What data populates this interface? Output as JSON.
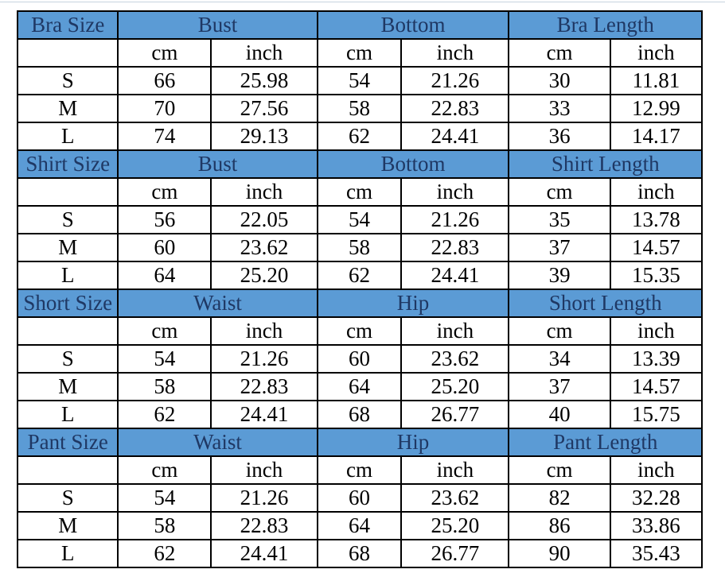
{
  "theme": {
    "header_background": "#5b9bd5",
    "header_text_color": "#1f3864",
    "body_text_color": "#000000",
    "border_color": "#000000",
    "page_background": "#ffffff"
  },
  "sections": [
    {
      "size_label": "Bra Size",
      "groups": [
        "Bust",
        "Bottom",
        "Bra Length"
      ],
      "units": [
        "cm",
        "inch",
        "cm",
        "inch",
        "cm",
        "inch"
      ],
      "rows": [
        {
          "size": "S",
          "values": [
            "66",
            "25.98",
            "54",
            "21.26",
            "30",
            "11.81"
          ]
        },
        {
          "size": "M",
          "values": [
            "70",
            "27.56",
            "58",
            "22.83",
            "33",
            "12.99"
          ]
        },
        {
          "size": "L",
          "values": [
            "74",
            "29.13",
            "62",
            "24.41",
            "36",
            "14.17"
          ]
        }
      ]
    },
    {
      "size_label": "Shirt Size",
      "groups": [
        "Bust",
        "Bottom",
        "Shirt Length"
      ],
      "units": [
        "cm",
        "inch",
        "cm",
        "inch",
        "cm",
        "inch"
      ],
      "rows": [
        {
          "size": "S",
          "values": [
            "56",
            "22.05",
            "54",
            "21.26",
            "35",
            "13.78"
          ]
        },
        {
          "size": "M",
          "values": [
            "60",
            "23.62",
            "58",
            "22.83",
            "37",
            "14.57"
          ]
        },
        {
          "size": "L",
          "values": [
            "64",
            "25.20",
            "62",
            "24.41",
            "39",
            "15.35"
          ]
        }
      ]
    },
    {
      "size_label": "Short Size",
      "groups": [
        "Waist",
        "Hip",
        "Short Length"
      ],
      "units": [
        "cm",
        "inch",
        "cm",
        "inch",
        "cm",
        "inch"
      ],
      "rows": [
        {
          "size": "S",
          "values": [
            "54",
            "21.26",
            "60",
            "23.62",
            "34",
            "13.39"
          ]
        },
        {
          "size": "M",
          "values": [
            "58",
            "22.83",
            "64",
            "25.20",
            "37",
            "14.57"
          ]
        },
        {
          "size": "L",
          "values": [
            "62",
            "24.41",
            "68",
            "26.77",
            "40",
            "15.75"
          ]
        }
      ]
    },
    {
      "size_label": "Pant Size",
      "groups": [
        "Waist",
        "Hip",
        "Pant Length"
      ],
      "units": [
        "cm",
        "inch",
        "cm",
        "inch",
        "cm",
        "inch"
      ],
      "rows": [
        {
          "size": "S",
          "values": [
            "54",
            "21.26",
            "60",
            "23.62",
            "82",
            "32.28"
          ]
        },
        {
          "size": "M",
          "values": [
            "58",
            "22.83",
            "64",
            "25.20",
            "86",
            "33.86"
          ]
        },
        {
          "size": "L",
          "values": [
            "62",
            "24.41",
            "68",
            "26.77",
            "90",
            "35.43"
          ]
        }
      ]
    }
  ],
  "chart_data": [
    {
      "type": "table",
      "title": "Bra Size",
      "columns": [
        "Bra Size",
        "Bust cm",
        "Bust inch",
        "Bottom cm",
        "Bottom inch",
        "Bra Length cm",
        "Bra Length inch"
      ],
      "rows": [
        [
          "S",
          66,
          25.98,
          54,
          21.26,
          30,
          11.81
        ],
        [
          "M",
          70,
          27.56,
          58,
          22.83,
          33,
          12.99
        ],
        [
          "L",
          74,
          29.13,
          62,
          24.41,
          36,
          14.17
        ]
      ]
    },
    {
      "type": "table",
      "title": "Shirt Size",
      "columns": [
        "Shirt Size",
        "Bust cm",
        "Bust inch",
        "Bottom cm",
        "Bottom inch",
        "Shirt Length cm",
        "Shirt Length inch"
      ],
      "rows": [
        [
          "S",
          56,
          22.05,
          54,
          21.26,
          35,
          13.78
        ],
        [
          "M",
          60,
          23.62,
          58,
          22.83,
          37,
          14.57
        ],
        [
          "L",
          64,
          25.2,
          62,
          24.41,
          39,
          15.35
        ]
      ]
    },
    {
      "type": "table",
      "title": "Short Size",
      "columns": [
        "Short Size",
        "Waist cm",
        "Waist inch",
        "Hip cm",
        "Hip inch",
        "Short Length cm",
        "Short Length inch"
      ],
      "rows": [
        [
          "S",
          54,
          21.26,
          60,
          23.62,
          34,
          13.39
        ],
        [
          "M",
          58,
          22.83,
          64,
          25.2,
          37,
          14.57
        ],
        [
          "L",
          62,
          24.41,
          68,
          26.77,
          40,
          15.75
        ]
      ]
    },
    {
      "type": "table",
      "title": "Pant Size",
      "columns": [
        "Pant Size",
        "Waist cm",
        "Waist inch",
        "Hip cm",
        "Hip inch",
        "Pant Length cm",
        "Pant Length inch"
      ],
      "rows": [
        [
          "S",
          54,
          21.26,
          60,
          23.62,
          82,
          32.28
        ],
        [
          "M",
          58,
          22.83,
          64,
          25.2,
          86,
          33.86
        ],
        [
          "L",
          62,
          24.41,
          68,
          26.77,
          90,
          35.43
        ]
      ]
    }
  ]
}
